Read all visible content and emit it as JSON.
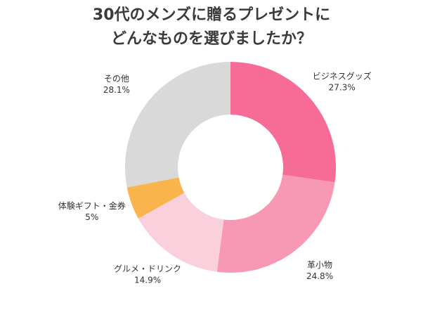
{
  "chart_data": {
    "type": "donut",
    "title": [
      "30代のメンズに贈るプレゼントに",
      "どんなものを選びましたか？"
    ],
    "categories": [
      "ビジネスグッズ",
      "革小物",
      "グルメ・ドリンク",
      "体験ギフト・金券",
      "その他"
    ],
    "values": [
      27.3,
      24.8,
      14.9,
      5,
      28.1
    ],
    "value_labels": [
      "27.3%",
      "24.8%",
      "14.9%",
      "5%",
      "28.1%"
    ],
    "colors": [
      "#f76b97",
      "#f799b5",
      "#fbd0dd",
      "#f9b44e",
      "#d9d9d9"
    ]
  }
}
